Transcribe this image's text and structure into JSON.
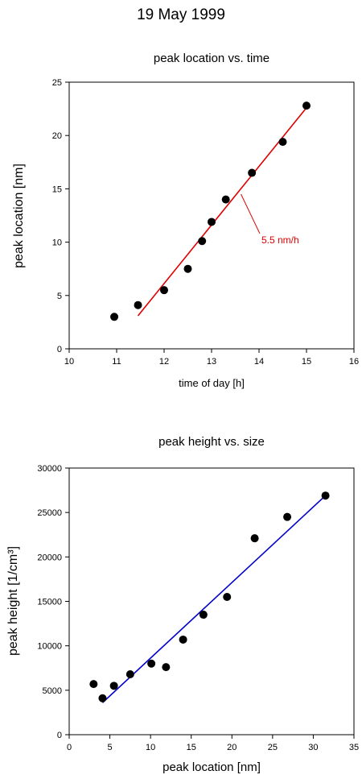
{
  "page": {
    "title": "19 May 1999"
  },
  "colors": {
    "fit_line_1": "#e00000",
    "fit_line_2": "#0000cc",
    "points": "#000000",
    "annotation": "#e00000"
  },
  "chart_data": [
    {
      "type": "scatter",
      "title": "peak location vs. time",
      "xlabel": "time of day [h]",
      "ylabel": "peak location [nm]",
      "xlim": [
        10,
        16
      ],
      "ylim": [
        0,
        25
      ],
      "xticks": [
        10,
        11,
        12,
        13,
        14,
        15,
        16
      ],
      "yticks": [
        0,
        5,
        10,
        15,
        20,
        25
      ],
      "grid": false,
      "series": [
        {
          "x": [
            10.95,
            11.45,
            12.0,
            12.5,
            12.8,
            13.0,
            13.3,
            13.85,
            14.5,
            15.0
          ],
          "y": [
            3.0,
            4.1,
            5.5,
            7.5,
            10.1,
            11.9,
            14.0,
            16.5,
            19.4,
            22.8
          ]
        }
      ],
      "fit_line": {
        "x": [
          11.45,
          15.0
        ],
        "y": [
          3.1,
          22.6
        ]
      },
      "annotation": {
        "text": "5.5 nm/h",
        "x": 14.05,
        "y": 9.9,
        "pointer_to": [
          13.62,
          14.5
        ]
      }
    },
    {
      "type": "scatter",
      "title": "peak height vs. size",
      "xlabel": "peak location [nm]",
      "ylabel": "peak height [1/cm³]",
      "xlim": [
        0,
        35
      ],
      "ylim": [
        0,
        30000
      ],
      "xticks": [
        0,
        5,
        10,
        15,
        20,
        25,
        30,
        35
      ],
      "yticks": [
        0,
        5000,
        10000,
        15000,
        20000,
        25000,
        30000
      ],
      "grid": false,
      "series": [
        {
          "x": [
            3.0,
            4.1,
            5.5,
            7.5,
            10.1,
            11.9,
            14.0,
            16.5,
            19.4,
            22.8,
            26.8,
            31.5
          ],
          "y": [
            5700,
            4100,
            5500,
            6800,
            8000,
            7600,
            10700,
            13500,
            15500,
            22100,
            24500,
            26900
          ]
        }
      ],
      "fit_line": {
        "x": [
          4.1,
          31.5
        ],
        "y": [
          3600,
          26900
        ]
      }
    }
  ]
}
